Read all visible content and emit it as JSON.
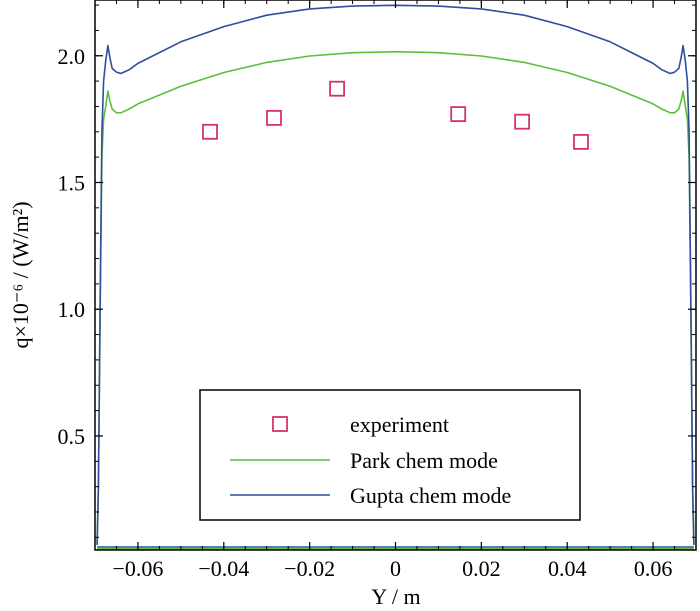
{
  "chart_data": {
    "type": "line",
    "title": "",
    "xlabel": "Y / m",
    "ylabel": "q×10⁻⁶ / (W/m²)",
    "xlim": [
      -0.07,
      0.07
    ],
    "ylim": [
      0.05,
      2.22
    ],
    "x_ticks": [
      -0.06,
      -0.04,
      -0.02,
      0,
      0.02,
      0.04,
      0.06
    ],
    "x_tick_labels": [
      "−0.06",
      "−0.04",
      "−0.02",
      "0",
      "0.02",
      "0.04",
      "0.06"
    ],
    "y_ticks": [
      0.5,
      1.0,
      1.5,
      2.0
    ],
    "y_tick_labels": [
      "0.5",
      "1.0",
      "1.5",
      "2.0"
    ],
    "grid": false,
    "legend_position": "bottom-center",
    "legend": {
      "experiment": "experiment",
      "park": "Park chem mode",
      "gupta": "Gupta chem mode"
    },
    "experiment": {
      "name": "experiment",
      "color": "#d6336c",
      "x": [
        -0.0432,
        -0.0283,
        -0.0136,
        0.0146,
        0.0295,
        0.0432
      ],
      "y": [
        1.7,
        1.755,
        1.87,
        1.77,
        1.74,
        1.66
      ]
    },
    "series": [
      {
        "name": "Park chem mode",
        "color": "#5cbf3a",
        "x": [
          -0.0695,
          -0.0692,
          -0.0688,
          -0.0684,
          -0.068,
          -0.0675,
          -0.067,
          -0.0665,
          -0.066,
          -0.065,
          -0.064,
          -0.062,
          -0.06,
          -0.05,
          -0.04,
          -0.03,
          -0.02,
          -0.01,
          0.0,
          0.01,
          0.02,
          0.03,
          0.04,
          0.05,
          0.06,
          0.062,
          0.064,
          0.065,
          0.066,
          0.0665,
          0.067,
          0.0675,
          0.068,
          0.0684,
          0.0688,
          0.0692,
          0.0695
        ],
        "y": [
          0.07,
          0.3,
          1.0,
          1.6,
          1.75,
          1.8,
          1.86,
          1.82,
          1.79,
          1.775,
          1.775,
          1.79,
          1.81,
          1.88,
          1.934,
          1.974,
          1.999,
          2.012,
          2.016,
          2.012,
          1.999,
          1.974,
          1.934,
          1.88,
          1.81,
          1.79,
          1.775,
          1.775,
          1.79,
          1.82,
          1.86,
          1.8,
          1.75,
          1.6,
          1.0,
          0.3,
          0.07
        ]
      },
      {
        "name": "Gupta chem mode",
        "color": "#2d4f9e",
        "x": [
          -0.0695,
          -0.0692,
          -0.0688,
          -0.0684,
          -0.068,
          -0.0675,
          -0.067,
          -0.0665,
          -0.066,
          -0.065,
          -0.064,
          -0.062,
          -0.06,
          -0.05,
          -0.04,
          -0.03,
          -0.02,
          -0.01,
          0.0,
          0.01,
          0.02,
          0.03,
          0.04,
          0.05,
          0.06,
          0.062,
          0.064,
          0.065,
          0.066,
          0.0665,
          0.067,
          0.0675,
          0.068,
          0.0684,
          0.0688,
          0.0692,
          0.0695
        ],
        "y": [
          0.07,
          0.3,
          1.05,
          1.7,
          1.9,
          1.98,
          2.04,
          1.99,
          1.95,
          1.935,
          1.93,
          1.945,
          1.97,
          2.055,
          2.115,
          2.16,
          2.185,
          2.196,
          2.199,
          2.196,
          2.185,
          2.16,
          2.115,
          2.055,
          1.97,
          1.945,
          1.93,
          1.935,
          1.95,
          1.99,
          2.04,
          1.98,
          1.9,
          1.7,
          1.05,
          0.3,
          0.07
        ]
      }
    ],
    "baselines": [
      {
        "name": "Park chem mode",
        "color": "#5cbf3a",
        "x": [
          -0.0695,
          0.0695
        ],
        "y": [
          0.055,
          0.055
        ]
      },
      {
        "name": "Gupta chem mode",
        "color": "#2d4f9e",
        "x": [
          -0.0695,
          0.0695
        ],
        "y": [
          0.062,
          0.062
        ]
      }
    ]
  }
}
